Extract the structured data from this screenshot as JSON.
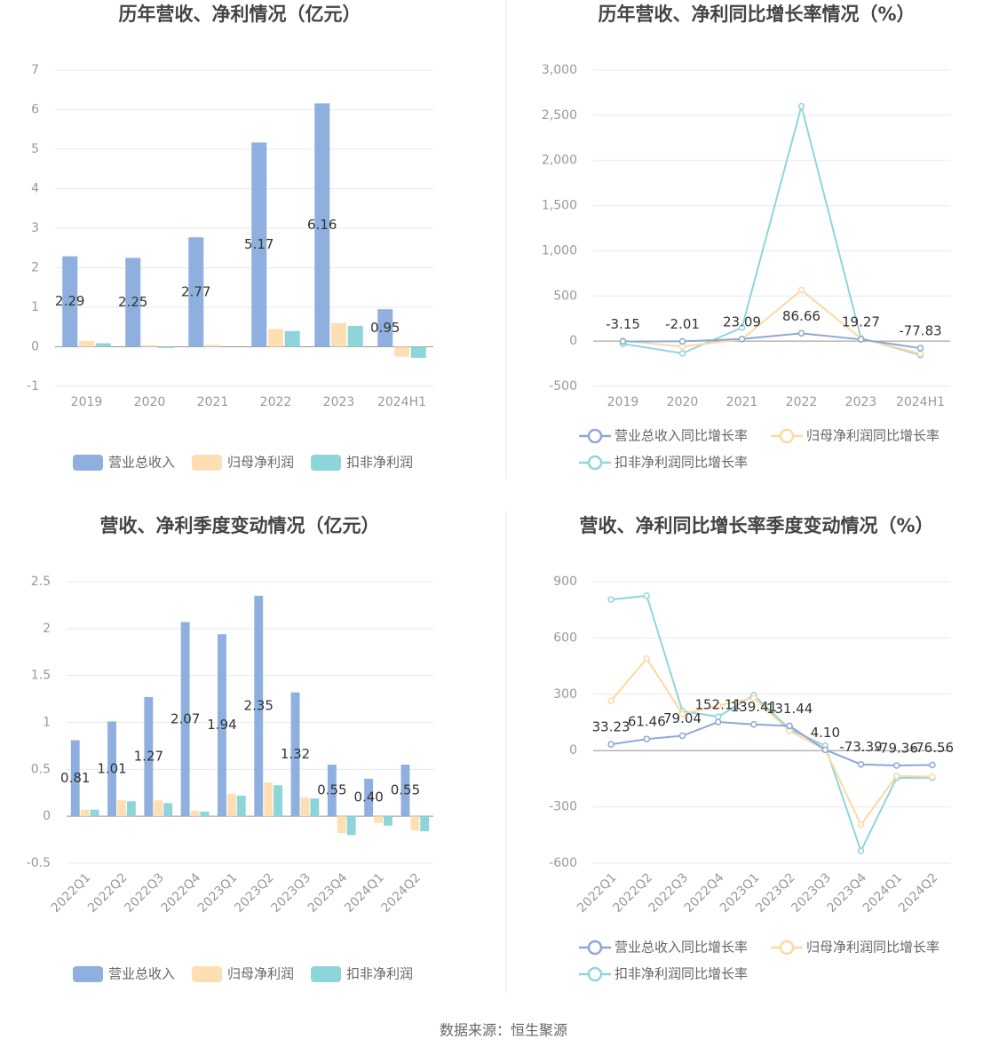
{
  "chart_data": [
    {
      "type": "bar",
      "title": "历年营收、净利情况（亿元）",
      "categories": [
        "2019",
        "2020",
        "2021",
        "2022",
        "2023",
        "2024H1"
      ],
      "series": [
        {
          "name": "营业总收入",
          "color": "#8fb0de",
          "values": [
            2.29,
            2.25,
            2.77,
            5.17,
            6.16,
            0.95
          ],
          "data_labels": true
        },
        {
          "name": "归母净利润",
          "color": "#fedfb3",
          "values": [
            0.15,
            0.04,
            0.05,
            0.45,
            0.6,
            -0.25
          ]
        },
        {
          "name": "扣非净利润",
          "color": "#8dd5d8",
          "values": [
            0.09,
            -0.03,
            0.0,
            0.4,
            0.53,
            -0.28
          ]
        }
      ],
      "ylim": [
        -1,
        7
      ],
      "yticks": [
        -1,
        0,
        1,
        2,
        3,
        4,
        5,
        6,
        7
      ],
      "grid": true
    },
    {
      "type": "line",
      "title": "历年营收、净利同比增长率情况（%）",
      "categories": [
        "2019",
        "2020",
        "2021",
        "2022",
        "2023",
        "2024H1"
      ],
      "series": [
        {
          "name": "营业总收入同比增长率",
          "color": "#8fa8d8",
          "values": [
            -3.15,
            -2.01,
            23.09,
            86.66,
            19.27,
            -77.83
          ],
          "data_labels": true
        },
        {
          "name": "归母净利润同比增长率",
          "color": "#fdd9a0",
          "values": [
            5,
            -60,
            20,
            565,
            30,
            -140
          ]
        },
        {
          "name": "扣非净利润同比增长率",
          "color": "#8fd6d9",
          "values": [
            -30,
            -135,
            150,
            2600,
            35,
            -155
          ]
        }
      ],
      "ylim": [
        -500,
        3000
      ],
      "yticks": [
        -500,
        0,
        500,
        {
          "value": 1000,
          "label": "1,000"
        },
        {
          "value": 1500,
          "label": "1,500"
        },
        {
          "value": 2000,
          "label": "2,000"
        },
        {
          "value": 2500,
          "label": "2,500"
        },
        {
          "value": 3000,
          "label": "3,000"
        }
      ],
      "grid": true
    },
    {
      "type": "bar",
      "title": "营收、净利季度变动情况（亿元）",
      "categories": [
        "2022Q1",
        "2022Q2",
        "2022Q3",
        "2022Q4",
        "2023Q1",
        "2023Q2",
        "2023Q3",
        "2023Q4",
        "2024Q1",
        "2024Q2"
      ],
      "series": [
        {
          "name": "营业总收入",
          "color": "#8fb0de",
          "values": [
            0.81,
            1.01,
            1.27,
            2.07,
            1.94,
            2.35,
            1.32,
            0.55,
            0.4,
            0.55
          ],
          "value_labels": [
            "0.81",
            "1.01",
            "1.27",
            "2.07",
            "1.94",
            "2.35",
            "1.32",
            "0.55",
            "0.40",
            "0.55"
          ],
          "data_labels": true
        },
        {
          "name": "归母净利润",
          "color": "#fedfb3",
          "values": [
            0.07,
            0.17,
            0.17,
            0.06,
            0.24,
            0.36,
            0.2,
            -0.18,
            -0.07,
            -0.15
          ]
        },
        {
          "name": "扣非净利润",
          "color": "#8dd5d8",
          "values": [
            0.07,
            0.16,
            0.14,
            0.05,
            0.22,
            0.33,
            0.19,
            -0.2,
            -0.1,
            -0.16
          ]
        }
      ],
      "ylim": [
        -0.5,
        2.5
      ],
      "yticks": [
        -0.5,
        0,
        0.5,
        1,
        1.5,
        2,
        2.5
      ],
      "grid": true
    },
    {
      "type": "line",
      "title": "营收、净利同比增长率季度变动情况（%）",
      "categories": [
        "2022Q1",
        "2022Q2",
        "2022Q3",
        "2022Q4",
        "2023Q1",
        "2023Q2",
        "2023Q3",
        "2023Q4",
        "2024Q1",
        "2024Q2"
      ],
      "series": [
        {
          "name": "营业总收入同比增长率",
          "color": "#8fa8d8",
          "values": [
            33.23,
            61.46,
            79.04,
            152.11,
            139.41,
            131.44,
            4.1,
            -73.39,
            -79.36,
            -76.56
          ],
          "value_labels": [
            "33.23",
            "61.46",
            "79.04",
            "152.11",
            "139.41",
            "131.44",
            "4.10",
            "-73.39",
            "-79.36",
            "-76.56"
          ],
          "data_labels": true
        },
        {
          "name": "归母净利润同比增长率",
          "color": "#fdd9a0",
          "values": [
            265,
            490,
            195,
            240,
            280,
            105,
            5,
            -395,
            -135,
            -140
          ]
        },
        {
          "name": "扣非净利润同比增长率",
          "color": "#8fd6d9",
          "values": [
            805,
            825,
            210,
            180,
            295,
            115,
            25,
            -535,
            -145,
            -145
          ]
        }
      ],
      "ylim": [
        -600,
        900
      ],
      "yticks": [
        -600,
        -300,
        0,
        300,
        600,
        900
      ],
      "grid": true
    }
  ],
  "source": "数据来源：恒生聚源"
}
